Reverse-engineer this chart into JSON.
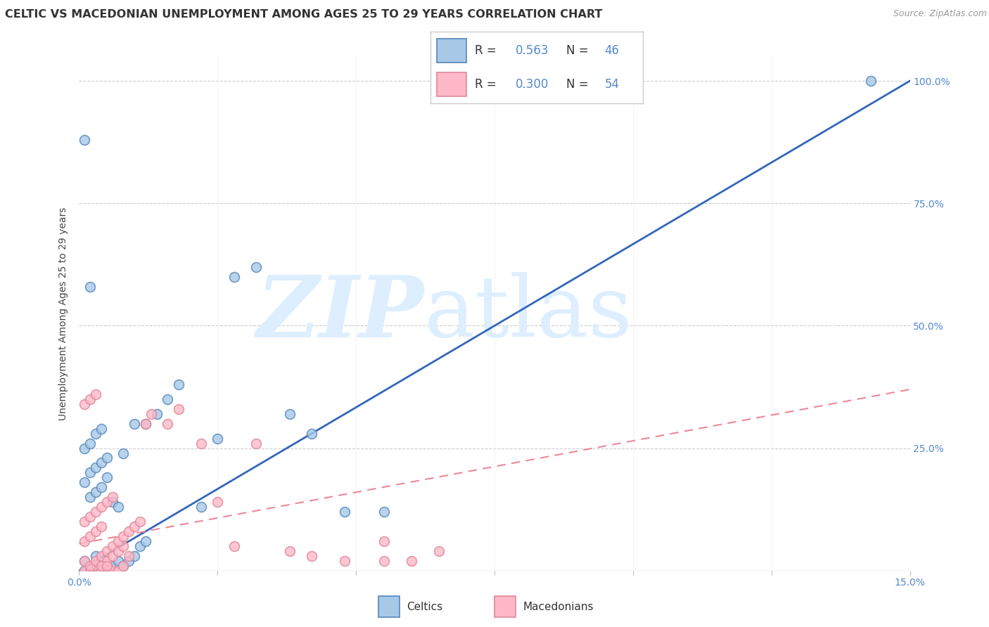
{
  "title": "CELTIC VS MACEDONIAN UNEMPLOYMENT AMONG AGES 25 TO 29 YEARS CORRELATION CHART",
  "source": "Source: ZipAtlas.com",
  "ylabel": "Unemployment Among Ages 25 to 29 years",
  "xmin": 0.0,
  "xmax": 0.15,
  "ymin": 0.0,
  "ymax": 1.05,
  "celtics_R": 0.563,
  "celtics_N": 46,
  "macedonians_R": 0.3,
  "macedonians_N": 54,
  "celtics_color": "#A8C8E8",
  "celtics_edge_color": "#5588BB",
  "macedonians_color": "#FFB8C8",
  "macedonians_edge_color": "#DD8899",
  "celtics_line_color": "#3366BB",
  "macedonians_line_color": "#EE8899",
  "tick_color": "#5588CC",
  "grid_color": "#CCCCCC",
  "title_color": "#333333",
  "source_color": "#999999",
  "blue_line_x0": 0.0,
  "blue_line_y0": 0.0,
  "blue_line_x1": 0.15,
  "blue_line_y1": 1.0,
  "pink_line_x0": 0.0,
  "pink_line_y0": 0.055,
  "pink_line_x1": 0.15,
  "pink_line_y1": 0.37,
  "celtics_scatter_x": [
    0.001,
    0.002,
    0.003,
    0.004,
    0.005,
    0.006,
    0.007,
    0.008,
    0.009,
    0.01,
    0.011,
    0.012,
    0.001,
    0.002,
    0.003,
    0.004,
    0.005,
    0.002,
    0.003,
    0.004,
    0.005,
    0.006,
    0.007,
    0.008,
    0.001,
    0.002,
    0.003,
    0.004,
    0.012,
    0.014,
    0.016,
    0.018,
    0.022,
    0.025,
    0.028,
    0.032,
    0.038,
    0.042,
    0.048,
    0.055,
    0.001,
    0.002,
    0.01,
    0.143,
    0.001,
    0.003
  ],
  "celtics_scatter_y": [
    0.0,
    0.0,
    0.01,
    0.0,
    0.0,
    0.01,
    0.02,
    0.01,
    0.02,
    0.03,
    0.05,
    0.06,
    0.18,
    0.2,
    0.21,
    0.22,
    0.23,
    0.15,
    0.16,
    0.17,
    0.19,
    0.14,
    0.13,
    0.24,
    0.25,
    0.26,
    0.28,
    0.29,
    0.3,
    0.32,
    0.35,
    0.38,
    0.13,
    0.27,
    0.6,
    0.62,
    0.32,
    0.28,
    0.12,
    0.12,
    0.88,
    0.58,
    0.3,
    1.0,
    0.02,
    0.03
  ],
  "macedonians_scatter_x": [
    0.001,
    0.002,
    0.003,
    0.004,
    0.005,
    0.006,
    0.001,
    0.002,
    0.003,
    0.004,
    0.005,
    0.006,
    0.007,
    0.008,
    0.001,
    0.002,
    0.003,
    0.004,
    0.005,
    0.006,
    0.007,
    0.008,
    0.009,
    0.001,
    0.002,
    0.003,
    0.004,
    0.005,
    0.006,
    0.007,
    0.008,
    0.009,
    0.01,
    0.011,
    0.012,
    0.013,
    0.016,
    0.018,
    0.022,
    0.025,
    0.028,
    0.032,
    0.038,
    0.042,
    0.048,
    0.055,
    0.06,
    0.065,
    0.001,
    0.002,
    0.003,
    0.004,
    0.005,
    0.055
  ],
  "macedonians_scatter_y": [
    0.0,
    0.0,
    0.01,
    0.0,
    0.01,
    0.0,
    0.02,
    0.01,
    0.02,
    0.03,
    0.04,
    0.05,
    0.0,
    0.01,
    0.06,
    0.07,
    0.08,
    0.09,
    0.02,
    0.03,
    0.04,
    0.05,
    0.03,
    0.1,
    0.11,
    0.12,
    0.13,
    0.14,
    0.15,
    0.06,
    0.07,
    0.08,
    0.09,
    0.1,
    0.3,
    0.32,
    0.3,
    0.33,
    0.26,
    0.14,
    0.05,
    0.26,
    0.04,
    0.03,
    0.02,
    0.06,
    0.02,
    0.04,
    0.34,
    0.35,
    0.36,
    0.01,
    0.01,
    0.02
  ]
}
